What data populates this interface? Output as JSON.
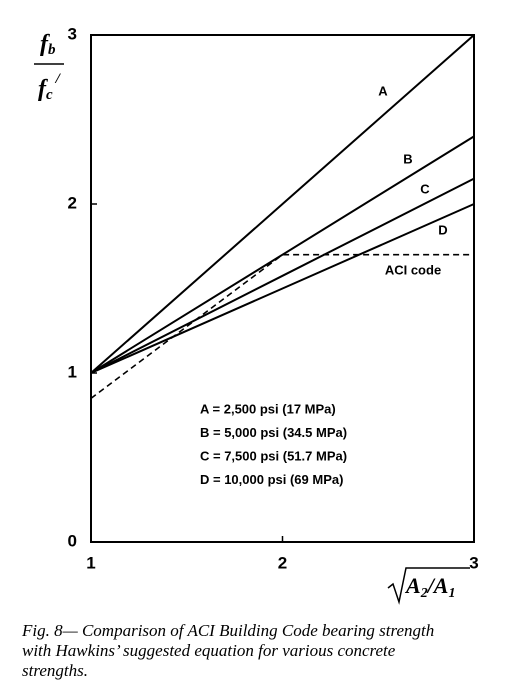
{
  "chart_data": {
    "type": "line",
    "x": [
      1,
      2,
      3
    ],
    "series": [
      {
        "name": "A",
        "color": "#000000",
        "values": [
          1,
          2,
          3
        ]
      },
      {
        "name": "B",
        "color": "#000000",
        "values": [
          1,
          1.7,
          2.4
        ]
      },
      {
        "name": "C",
        "color": "#000000",
        "values": [
          1,
          1.575,
          2.15
        ]
      },
      {
        "name": "D",
        "color": "#000000",
        "values": [
          1,
          1.5,
          2
        ]
      },
      {
        "name": "ACI code",
        "color": "#000000",
        "dashed": true,
        "values": [
          0.85,
          1.7,
          1.7
        ]
      }
    ],
    "xlim": [
      1,
      3
    ],
    "xticks": [
      1,
      2,
      3
    ],
    "ylim": [
      0,
      3
    ],
    "yticks": [
      0,
      1,
      2,
      3
    ],
    "y_label": {
      "numerator": "f",
      "numerator_sub": "b",
      "denominator": "f",
      "denominator_sub": "c",
      "denominator_sup": "/"
    },
    "x_label": {
      "first": "A",
      "first_sub": "2",
      "second": "/A",
      "second_sub": "1"
    },
    "annotations": [
      "A = 2,500 psi (17 MPa)",
      "B = 5,000 psi (34.5 MPa)",
      "C = 7,500 psi (51.7 MPa)",
      "D = 10,000 psi (69 MPa)"
    ],
    "caption_lines": [
      "Fig. 8— Comparison of ACI Building Code bearing strength",
      "with Hawkins’ suggested equation for various concrete",
      "strengths."
    ]
  }
}
